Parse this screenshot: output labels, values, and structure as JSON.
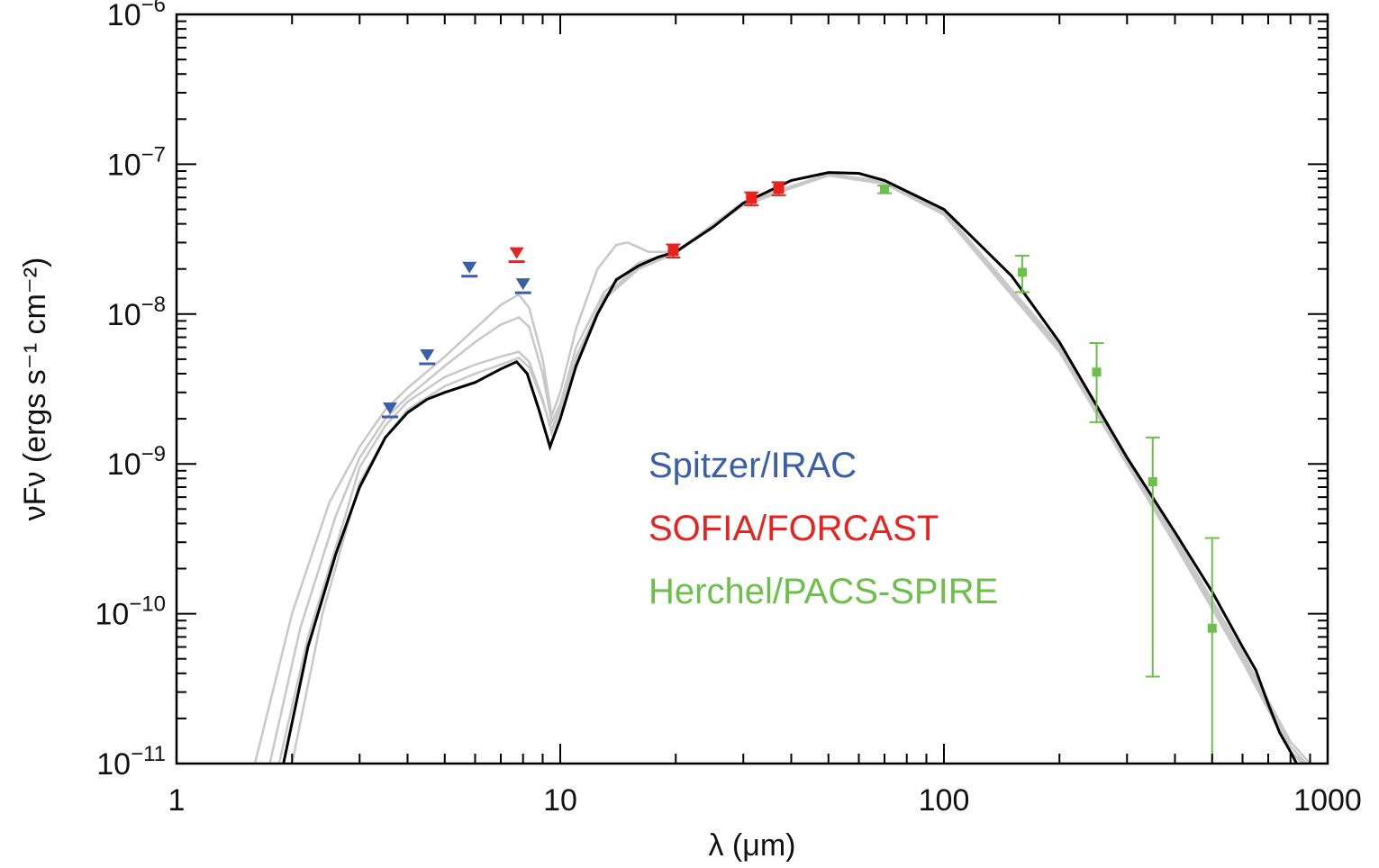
{
  "chart_data": {
    "type": "scatter",
    "xlabel": "λ (μm)",
    "ylabel": "νFν (ergs s⁻¹ cm⁻²)",
    "xscale": "log",
    "yscale": "log",
    "xlim": [
      1,
      1000
    ],
    "ylim": [
      1e-11,
      1e-06
    ],
    "grid": false,
    "legend_placement": "center",
    "x_tick_labels": [
      "1",
      "10",
      "100",
      "1000"
    ],
    "y_tick_labels": [
      {
        "base": "10",
        "exp": "−11"
      },
      {
        "base": "10",
        "exp": "−10"
      },
      {
        "base": "10",
        "exp": "−9"
      },
      {
        "base": "10",
        "exp": "−8"
      },
      {
        "base": "10",
        "exp": "−7"
      },
      {
        "base": "10",
        "exp": "−6"
      }
    ],
    "colors": {
      "irac": "#3a5fa8",
      "forcast": "#e8231f",
      "herschel": "#6cc04a",
      "best_fit": "#000000",
      "other_fits": "#c8c8c8"
    },
    "series": [
      {
        "name": "Spitzer/IRAC",
        "kind": "upper_limit",
        "x": [
          3.6,
          4.5,
          5.8,
          8.0
        ],
        "y": [
          2.3e-09,
          5.2e-09,
          2e-08,
          1.55e-08
        ]
      },
      {
        "name": "SOFIA/FORCAST",
        "kind": "points",
        "x": [
          7.7,
          19.7,
          31.5,
          37.1
        ],
        "y": [
          2.5e-08,
          2.65e-08,
          5.9e-08,
          6.9e-08
        ],
        "upper_limit": [
          true,
          false,
          false,
          false
        ]
      },
      {
        "name": "Herchel/PACS-SPIRE",
        "kind": "points_with_errors",
        "x": [
          70,
          160,
          250,
          350,
          500
        ],
        "y": [
          6.8e-08,
          1.9e-08,
          4.1e-09,
          7.6e-10,
          8e-11
        ],
        "y_err_low": [
          6.4e-08,
          1.4e-08,
          1.9e-09,
          3.8e-11,
          1e-11
        ],
        "y_err_high": [
          7.2e-08,
          2.45e-08,
          6.4e-09,
          1.5e-09,
          3.2e-10
        ]
      }
    ],
    "model_curves": [
      {
        "role": "best_fit",
        "x": [
          1.9,
          2.2,
          2.6,
          3.0,
          3.5,
          4.0,
          4.5,
          5.0,
          6.0,
          7.0,
          7.7,
          8.2,
          8.8,
          9.4,
          10.0,
          11.0,
          12.5,
          14.0,
          16.0,
          18.0,
          20.0,
          25.0,
          30.0,
          40.0,
          50.0,
          60.0,
          70.0,
          100.0,
          150.0,
          200.0,
          300.0,
          400.0,
          500.0,
          600.0,
          650.0,
          700.0,
          750.0,
          800.0,
          830.0
        ],
        "y": [
          1e-11,
          6e-11,
          2.5e-10,
          7e-10,
          1.5e-09,
          2.2e-09,
          2.7e-09,
          3e-09,
          3.5e-09,
          4.3e-09,
          4.8e-09,
          4e-09,
          2.3e-09,
          1.3e-09,
          2e-09,
          4.5e-09,
          1e-08,
          1.7e-08,
          2.1e-08,
          2.4e-08,
          2.6e-08,
          3.8e-08,
          5.5e-08,
          7.8e-08,
          8.8e-08,
          8.7e-08,
          7.8e-08,
          5e-08,
          1.8e-08,
          6.5e-09,
          1.1e-09,
          3.5e-10,
          1.4e-10,
          6e-11,
          4.2e-11,
          2.5e-11,
          1.6e-11,
          1.2e-11,
          1e-11
        ]
      },
      {
        "role": "other_fit",
        "x": [
          1.6,
          2.0,
          2.5,
          3.0,
          3.5,
          4.0,
          5.0,
          6.0,
          7.0,
          7.8,
          8.3,
          9.0,
          9.5,
          10.0,
          11.0,
          12.5,
          14.0,
          15.0,
          17.0,
          20.0,
          30.0,
          50.0,
          70.0,
          100.0,
          200.0,
          400.0,
          600.0,
          800.0,
          900.0
        ],
        "y": [
          1e-11,
          1e-10,
          5.5e-10,
          1.3e-09,
          2.3e-09,
          3.2e-09,
          5.2e-09,
          8e-09,
          1.15e-08,
          1.35e-08,
          1.1e-08,
          5e-09,
          2.1e-09,
          3e-09,
          8e-09,
          2e-08,
          2.9e-08,
          3e-08,
          2.6e-08,
          2.6e-08,
          5.3e-08,
          8.5e-08,
          7.6e-08,
          4.9e-08,
          6.2e-09,
          3.3e-10,
          5.5e-11,
          1.4e-11,
          1e-11
        ]
      },
      {
        "role": "other_fit",
        "x": [
          1.75,
          2.1,
          2.6,
          3.0,
          3.5,
          4.0,
          5.0,
          6.0,
          7.0,
          7.8,
          8.3,
          9.0,
          9.5,
          10.0,
          11.0,
          13.0,
          16.0,
          20.0,
          30.0,
          50.0,
          70.0,
          100.0,
          200.0,
          400.0,
          600.0,
          800.0,
          880.0
        ],
        "y": [
          1e-11,
          8e-11,
          4.5e-10,
          1.1e-09,
          2e-09,
          2.8e-09,
          4.5e-09,
          6.5e-09,
          8.5e-09,
          9.5e-09,
          8.2e-09,
          4e-09,
          1.9e-09,
          2.5e-09,
          6e-09,
          1.4e-08,
          2.2e-08,
          2.6e-08,
          5.6e-08,
          8.6e-08,
          7.7e-08,
          4.8e-08,
          6e-09,
          3.2e-10,
          5.2e-11,
          1.3e-11,
          1e-11
        ]
      },
      {
        "role": "other_fit",
        "x": [
          1.85,
          2.2,
          2.7,
          3.0,
          3.5,
          4.0,
          5.0,
          6.0,
          7.0,
          7.8,
          8.3,
          9.0,
          9.5,
          10.0,
          11.0,
          13.0,
          16.0,
          20.0,
          30.0,
          50.0,
          70.0,
          100.0,
          200.0,
          400.0,
          600.0,
          800.0,
          870.0
        ],
        "y": [
          1e-11,
          7e-11,
          3.8e-10,
          9.5e-10,
          1.8e-09,
          2.6e-09,
          3.8e-09,
          4.6e-09,
          5.2e-09,
          5.6e-09,
          4.8e-09,
          2.7e-09,
          1.6e-09,
          2.3e-09,
          5.2e-09,
          1.3e-08,
          2.1e-08,
          2.6e-08,
          5.5e-08,
          8.5e-08,
          7.5e-08,
          4.7e-08,
          5.8e-09,
          3e-10,
          5e-11,
          1.2e-11,
          1e-11
        ]
      },
      {
        "role": "other_fit",
        "x": [
          2.0,
          2.4,
          3.0,
          3.5,
          4.0,
          5.0,
          6.0,
          7.0,
          7.8,
          8.3,
          9.0,
          9.5,
          10.0,
          11.0,
          13.0,
          16.0,
          20.0,
          30.0,
          50.0,
          70.0,
          100.0,
          200.0,
          400.0,
          600.0,
          800.0,
          860.0
        ],
        "y": [
          1e-11,
          1e-10,
          7.5e-10,
          1.5e-09,
          2.3e-09,
          3.3e-09,
          4e-09,
          4.6e-09,
          5.1e-09,
          4.4e-09,
          2.6e-09,
          1.7e-09,
          2.4e-09,
          5e-09,
          1.25e-08,
          2e-08,
          2.55e-08,
          5.4e-08,
          8.4e-08,
          7.4e-08,
          4.6e-08,
          5.6e-09,
          2.9e-10,
          4.8e-11,
          1.2e-11,
          1e-11
        ]
      }
    ],
    "legend": [
      {
        "label": "Spitzer/IRAC",
        "color": "#3a5fa8"
      },
      {
        "label": "SOFIA/FORCAST",
        "color": "#e8231f"
      },
      {
        "label": "Herchel/PACS-SPIRE",
        "color": "#6cc04a"
      }
    ]
  }
}
